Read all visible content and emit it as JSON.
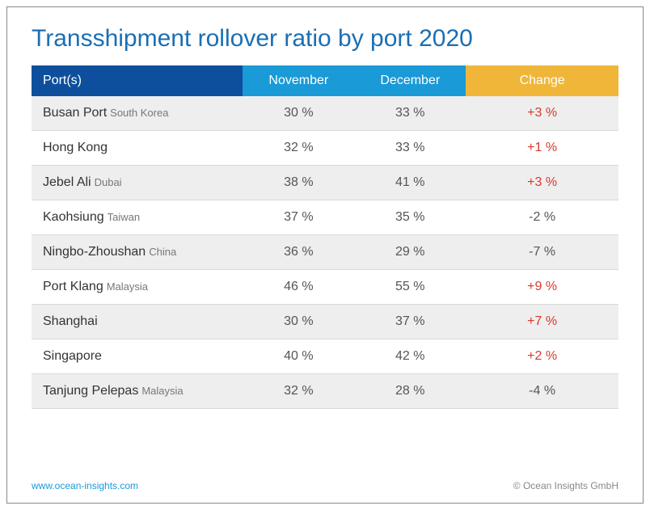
{
  "title": "Transshipment rollover ratio by port 2020",
  "title_color": "#1a6fb3",
  "header": {
    "ports_label": "Port(s)",
    "col1_label": "November",
    "col2_label": "December",
    "change_label": "Change",
    "ports_bg": "#0d4f9c",
    "months_bg": "#1a9ad6",
    "change_bg": "#f0b63a",
    "text_color": "#ffffff"
  },
  "columns_width": {
    "ports": "36%",
    "month": "19%",
    "change": "26%"
  },
  "row_colors": {
    "odd_bg": "#eeeeee",
    "even_bg": "#ffffff",
    "border": "#d9d9d9"
  },
  "change_colors": {
    "positive": "#d63a2c",
    "negative": "#555555"
  },
  "rows": [
    {
      "port": "Busan Port",
      "sub": "South Korea",
      "nov": "30 %",
      "dec": "33 %",
      "change": "+3 %",
      "positive": true
    },
    {
      "port": "Hong Kong",
      "sub": "",
      "nov": "32 %",
      "dec": "33 %",
      "change": "+1 %",
      "positive": true
    },
    {
      "port": "Jebel Ali",
      "sub": "Dubai",
      "nov": "38 %",
      "dec": "41 %",
      "change": "+3 %",
      "positive": true
    },
    {
      "port": "Kaohsiung",
      "sub": "Taiwan",
      "nov": "37 %",
      "dec": "35 %",
      "change": "-2 %",
      "positive": false
    },
    {
      "port": "Ningbo-Zhoushan",
      "sub": "China",
      "nov": "36 %",
      "dec": "29 %",
      "change": "-7 %",
      "positive": false
    },
    {
      "port": "Port Klang",
      "sub": "Malaysia",
      "nov": "46 %",
      "dec": "55 %",
      "change": "+9 %",
      "positive": true
    },
    {
      "port": "Shanghai",
      "sub": "",
      "nov": "30 %",
      "dec": "37 %",
      "change": "+7 %",
      "positive": true
    },
    {
      "port": "Singapore",
      "sub": "",
      "nov": "40 %",
      "dec": "42 %",
      "change": "+2 %",
      "positive": true
    },
    {
      "port": "Tanjung Pelepas",
      "sub": "Malaysia",
      "nov": "32 %",
      "dec": "28 %",
      "change": "-4 %",
      "positive": false
    }
  ],
  "footer": {
    "link_text": "www.ocean-insights.com",
    "copyright": "© Ocean Insights GmbH"
  }
}
